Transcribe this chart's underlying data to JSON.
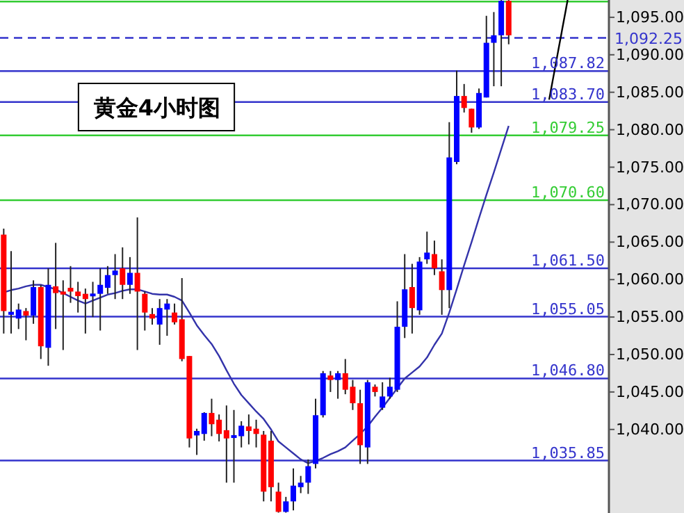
{
  "chart_data": [
    {
      "type": "candlestick",
      "title": "黄金4小时图",
      "categories": [
        null,
        null,
        null,
        null,
        null,
        null,
        null,
        null,
        null,
        null,
        null,
        null,
        null,
        null,
        null,
        null,
        null,
        null,
        null,
        null,
        null,
        null,
        null,
        null,
        null,
        null,
        null,
        null,
        null,
        null,
        null,
        null,
        null,
        null,
        null,
        null,
        null,
        null,
        null,
        null,
        null,
        null,
        null,
        null,
        null,
        null,
        null,
        null,
        null,
        null,
        null,
        null,
        null,
        null,
        null,
        null,
        null,
        null,
        null,
        null,
        null,
        null,
        null,
        null,
        null,
        null,
        null,
        null,
        null,
        null,
        null,
        null,
        null,
        null,
        null,
        null,
        null,
        null,
        null,
        null,
        null,
        null
      ],
      "ylim": [
        1028.85,
        1097.31
      ],
      "yticks": [
        {
          "value": 1040,
          "label": "1,040.00"
        },
        {
          "value": 1045,
          "label": "1,045.00"
        },
        {
          "value": 1050,
          "label": "1,050.00"
        },
        {
          "value": 1055,
          "label": "1,055.00"
        },
        {
          "value": 1060,
          "label": "1,060.00"
        },
        {
          "value": 1065,
          "label": "1,065.00"
        },
        {
          "value": 1070,
          "label": "1,070.00"
        },
        {
          "value": 1075,
          "label": "1,075.00"
        },
        {
          "value": 1080,
          "label": "1,080.00"
        },
        {
          "value": 1085,
          "label": "1,085.00"
        },
        {
          "value": 1090,
          "label": "1,090.00"
        },
        {
          "value": 1095,
          "label": "1,095.00"
        }
      ],
      "tick_labels": "y",
      "series": [
        {
          "ohlc": [
            [
              1066.0,
              1066.8,
              1052.8,
              1055.8
            ],
            [
              1055.3,
              1063.8,
              1052.8,
              1055.7
            ],
            [
              1054.8,
              1056.8,
              1053.4,
              1056.0
            ],
            [
              1055.8,
              1056.2,
              1051.9,
              1055.2
            ],
            [
              1055.2,
              1059.9,
              1054.1,
              1059.0
            ],
            [
              1059.0,
              1059.3,
              1049.4,
              1051.1
            ],
            [
              1050.9,
              1061.5,
              1048.5,
              1059.3
            ],
            [
              1059.1,
              1064.9,
              1053.4,
              1058.2
            ],
            [
              1058.4,
              1059.9,
              1050.6,
              1058.0
            ],
            [
              1058.9,
              1061.8,
              1056.9,
              1058.4
            ],
            [
              1058.4,
              1059.7,
              1055.6,
              1057.8
            ],
            [
              1058.1,
              1058.8,
              1052.8,
              1057.4
            ],
            [
              1057.8,
              1059.7,
              1055.0,
              1058.1
            ],
            [
              1058.1,
              1061.5,
              1053.2,
              1059.3
            ],
            [
              1058.9,
              1061.8,
              1058.1,
              1060.6
            ],
            [
              1060.6,
              1063.4,
              1057.4,
              1061.2
            ],
            [
              1061.5,
              1064.3,
              1057.4,
              1059.3
            ],
            [
              1059.3,
              1063.0,
              1058.1,
              1060.9
            ],
            [
              1060.9,
              1068.3,
              1050.6,
              1058.4
            ],
            [
              1058.1,
              1058.4,
              1053.2,
              1055.6
            ],
            [
              1055.4,
              1056.2,
              1054.0,
              1054.8
            ],
            [
              1054.0,
              1057.4,
              1051.3,
              1056.2
            ],
            [
              1056.0,
              1057.4,
              1052.5,
              1056.8
            ],
            [
              1055.6,
              1056.8,
              1054.0,
              1054.3
            ],
            [
              1054.7,
              1060.2,
              1049.1,
              1049.4
            ],
            [
              1049.8,
              1049.8,
              1037.6,
              1038.8
            ],
            [
              1039.2,
              1040.1,
              1036.6,
              1039.8
            ],
            [
              1039.4,
              1042.3,
              1038.5,
              1042.2
            ],
            [
              1042.2,
              1044.1,
              1039.1,
              1040.7
            ],
            [
              1041.3,
              1042.0,
              1038.4,
              1039.4
            ],
            [
              1039.9,
              1043.2,
              1032.9,
              1038.8
            ],
            [
              1038.9,
              1042.6,
              1032.9,
              1039.2
            ],
            [
              1039.1,
              1041.1,
              1037.6,
              1040.5
            ],
            [
              1040.4,
              1042.0,
              1038.0,
              1039.8
            ],
            [
              1040.1,
              1041.3,
              1037.6,
              1039.4
            ],
            [
              1039.3,
              1039.8,
              1030.4,
              1031.7
            ],
            [
              1038.5,
              1039.8,
              1030.4,
              1032.3
            ],
            [
              1031.7,
              1032.9,
              1028.9,
              1029.0
            ],
            [
              1029.0,
              1031.0,
              1028.9,
              1030.4
            ],
            [
              1030.4,
              1034.8,
              1029.2,
              1032.5
            ],
            [
              1032.3,
              1033.8,
              1031.5,
              1032.9
            ],
            [
              1032.9,
              1036.0,
              1031.4,
              1035.1
            ],
            [
              1035.4,
              1044.1,
              1034.8,
              1041.9
            ],
            [
              1041.9,
              1047.8,
              1041.6,
              1047.5
            ],
            [
              1047.2,
              1047.8,
              1045.0,
              1046.6
            ],
            [
              1046.6,
              1047.8,
              1044.1,
              1047.5
            ],
            [
              1047.5,
              1049.4,
              1044.7,
              1045.3
            ],
            [
              1045.7,
              1046.6,
              1042.6,
              1043.5
            ],
            [
              1043.5,
              1045.3,
              1035.4,
              1037.9
            ],
            [
              1037.6,
              1046.6,
              1035.4,
              1046.3
            ],
            [
              1045.7,
              1046.0,
              1044.4,
              1045.0
            ],
            [
              1042.9,
              1046.3,
              1042.6,
              1044.4
            ],
            [
              1044.4,
              1046.9,
              1044.1,
              1045.7
            ],
            [
              1045.3,
              1057.1,
              1045.0,
              1053.7
            ],
            [
              1053.7,
              1063.4,
              1052.2,
              1058.7
            ],
            [
              1059.0,
              1062.1,
              1052.8,
              1056.2
            ],
            [
              1055.9,
              1063.0,
              1055.3,
              1062.4
            ],
            [
              1062.7,
              1066.4,
              1062.1,
              1063.6
            ],
            [
              1063.4,
              1065.2,
              1060.6,
              1061.5
            ],
            [
              1061.1,
              1062.7,
              1055.3,
              1058.6
            ],
            [
              1058.6,
              1081.0,
              1056.2,
              1076.3
            ],
            [
              1075.7,
              1087.9,
              1075.4,
              1084.5
            ],
            [
              1084.5,
              1086.1,
              1082.3,
              1082.9
            ],
            [
              1082.8,
              1082.8,
              1079.6,
              1080.3
            ],
            [
              1080.3,
              1085.5,
              1080.1,
              1084.9
            ],
            [
              1084.3,
              1095.2,
              1084.3,
              1091.6
            ],
            [
              1091.6,
              1095.7,
              1085.8,
              1092.6
            ],
            [
              1092.6,
              1097.3,
              1085.8,
              1097.2
            ],
            [
              1097.2,
              1097.3,
              1091.4,
              1092.6
            ],
            null,
            null,
            null,
            null,
            null,
            null,
            null,
            null,
            null,
            null,
            null,
            null,
            null
          ],
          "colors": [
            "#ff0000",
            "#0000ff",
            "#0000ff",
            "#ff0000",
            "#0000ff",
            "#ff0000",
            "#0000ff",
            "#ff0000",
            "#ff0000",
            "#ff0000",
            "#ff0000",
            "#ff0000",
            "#0000ff",
            "#0000ff",
            "#0000ff",
            "#0000ff",
            "#ff0000",
            "#0000ff",
            "#ff0000",
            "#ff0000",
            "#ff0000",
            "#0000ff",
            "#0000ff",
            "#ff0000",
            "#ff0000",
            "#ff0000",
            "#0000ff",
            "#0000ff",
            "#ff0000",
            "#ff0000",
            "#ff0000",
            "#0000ff",
            "#0000ff",
            "#ff0000",
            "#ff0000",
            "#ff0000",
            "#ff0000",
            "#ff0000",
            "#0000ff",
            "#0000ff",
            "#0000ff",
            "#0000ff",
            "#0000ff",
            "#0000ff",
            "#ff0000",
            "#0000ff",
            "#ff0000",
            "#ff0000",
            "#ff0000",
            "#0000ff",
            "#ff0000",
            "#0000ff",
            "#0000ff",
            "#0000ff",
            "#0000ff",
            "#ff0000",
            "#0000ff",
            "#0000ff",
            "#ff0000",
            "#ff0000",
            "#0000ff",
            "#0000ff",
            "#ff0000",
            "#ff0000",
            "#0000ff",
            "#0000ff",
            "#0000ff",
            "#0000ff",
            "#ff0000",
            null,
            null,
            null,
            null,
            null,
            null,
            null,
            null,
            null,
            null,
            null,
            null,
            null
          ]
        },
        {
          "type": "line",
          "color": "#3333aa",
          "values": [
            1058.3,
            1058.6,
            1058.8,
            1059.1,
            1059.3,
            1059.3,
            1059.0,
            1058.7,
            1058.2,
            1057.7,
            1057.2,
            1056.8,
            1057.2,
            1057.6,
            1058.0,
            1058.2,
            1058.5,
            1058.7,
            1058.7,
            1058.4,
            1058.1,
            1058.0,
            1058.0,
            1057.7,
            1057.2,
            1055.6,
            1053.9,
            1052.6,
            1051.4,
            1049.8,
            1047.9,
            1046.1,
            1044.6,
            1043.5,
            1042.4,
            1041.4,
            1040.0,
            1038.4,
            1037.6,
            1036.8,
            1036.0,
            1035.5,
            1035.8,
            1036.2,
            1036.7,
            1037.1,
            1037.6,
            1038.5,
            1039.4,
            1040.4,
            1041.7,
            1042.9,
            1044.2,
            1045.5,
            1046.8,
            1047.6,
            1048.4,
            1049.6,
            1051.3,
            1052.8,
            1055.6,
            1058.7,
            1061.9,
            1065.0,
            1068.2,
            1071.3,
            1074.3,
            1077.4,
            1080.5,
            null,
            null,
            null,
            null,
            null,
            null,
            null,
            null,
            null,
            null,
            null,
            null,
            null
          ]
        }
      ],
      "ref_lines": [
        {
          "axis": "y",
          "value": 1097.1,
          "color": "#33cc33"
        },
        {
          "axis": "y",
          "value": 1092.25,
          "label": "1,092.25",
          "color": "#3333cc",
          "line_style": "dashed"
        },
        {
          "axis": "y",
          "value": 1087.82,
          "label": "1,087.82",
          "color": "#3333cc"
        },
        {
          "axis": "y",
          "value": 1083.7,
          "label": "1,083.70",
          "color": "#3333cc"
        },
        {
          "axis": "y",
          "value": 1079.25,
          "label": "1,079.25",
          "color": "#33cc33"
        },
        {
          "axis": "y",
          "value": 1070.6,
          "label": "1,070.60",
          "color": "#33cc33"
        },
        {
          "axis": "y",
          "value": 1061.5,
          "label": "1,061.50",
          "color": "#3333cc"
        },
        {
          "axis": "y",
          "value": 1055.05,
          "label": "1,055.05",
          "color": "#3333cc"
        },
        {
          "axis": "y",
          "value": 1046.8,
          "label": "1,046.80",
          "color": "#3333cc"
        },
        {
          "axis": "y",
          "value": 1035.85,
          "label": "1,035.85",
          "color": "#3333cc"
        }
      ]
    }
  ]
}
